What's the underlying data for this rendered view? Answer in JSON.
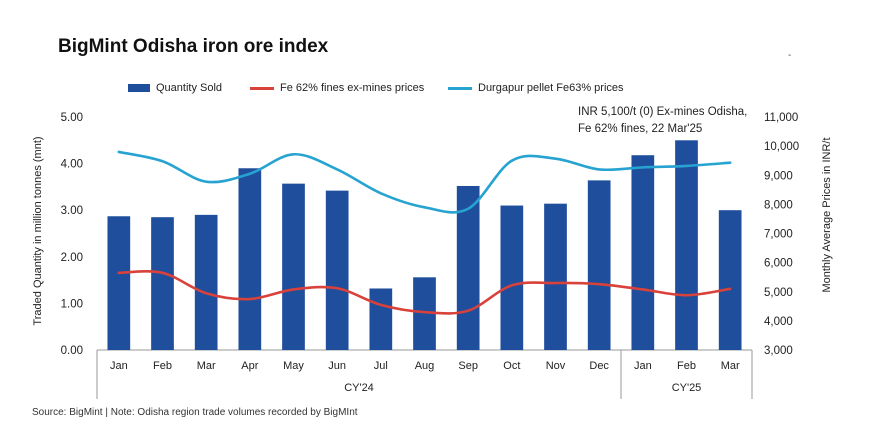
{
  "title": "BigMint Odisha iron ore index",
  "stray_mark": "-",
  "annotation": [
    "INR 5,100/t (0) Ex-mines Odisha,",
    "Fe 62% fines, 22 Mar'25"
  ],
  "footnote": "Source: BigMint | Note: Odisha region trade  volumes recorded by BigMInt",
  "colors": {
    "bar": "#1f4e9c",
    "fines": "#d9413b",
    "pellet": "#27a3d1"
  },
  "chart_data": {
    "type": "bar",
    "categories": [
      "Jan",
      "Feb",
      "Mar",
      "Apr",
      "May",
      "Jun",
      "Jul",
      "Aug",
      "Sep",
      "Oct",
      "Nov",
      "Dec",
      "Jan",
      "Feb",
      "Mar"
    ],
    "groups": [
      {
        "label": "CY'24",
        "count": 12
      },
      {
        "label": "CY'25",
        "count": 3
      }
    ],
    "series": [
      {
        "name": "Quantity Sold",
        "type": "bar",
        "axis": "left",
        "values": [
          2.87,
          2.85,
          2.9,
          3.9,
          3.57,
          3.42,
          1.32,
          1.56,
          3.52,
          3.1,
          3.14,
          3.64,
          4.18,
          4.5,
          3.0
        ]
      },
      {
        "name": "Fe 62% fines ex-mines prices",
        "type": "line",
        "axis": "right",
        "values": [
          5650,
          5650,
          4950,
          4750,
          5080,
          5120,
          4550,
          4300,
          4350,
          5220,
          5300,
          5260,
          5080,
          4880,
          5100
        ]
      },
      {
        "name": "Durgapur pellet Fe63% prices",
        "type": "line",
        "axis": "right",
        "values": [
          9800,
          9480,
          8780,
          9050,
          9720,
          9200,
          8380,
          7900,
          7850,
          9500,
          9570,
          9200,
          9270,
          9320,
          9430
        ]
      }
    ],
    "ylabel": "Traded Quantity in million  tonnes (mnt)",
    "y2label": "Monthly Average Prices in INR/t",
    "ylim": [
      0,
      5
    ],
    "y2lim": [
      3000,
      11000
    ],
    "yticks": [
      "0.00",
      "1.00",
      "2.00",
      "3.00",
      "4.00",
      "5.00"
    ],
    "y2ticks": [
      "3,000",
      "4,000",
      "5,000",
      "6,000",
      "7,000",
      "8,000",
      "9,000",
      "10,000",
      "11,000"
    ],
    "legend_position": "top"
  }
}
